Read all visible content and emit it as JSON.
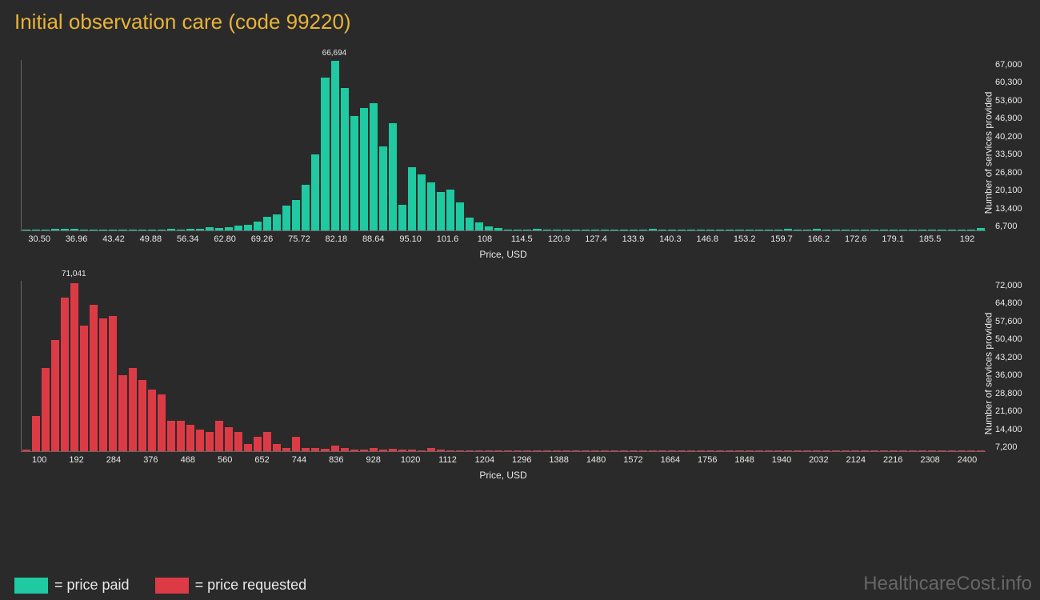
{
  "title": "Initial observation care (code 99220)",
  "watermark": "HealthcareCost.info",
  "xlabel": "Price, USD",
  "ylabel": "Number of services provided",
  "legend": {
    "paid": "= price paid",
    "requested": "= price requested"
  },
  "colors": {
    "background": "#2a2a2a",
    "title": "#e8b33a",
    "teal": "#1fc9a1",
    "red": "#dc3b46",
    "text": "#e8e8e8",
    "axis": "#666666",
    "watermark": "#666666"
  },
  "chart_paid": {
    "bar_color": "#1fc9a1",
    "peak_label": "66,694",
    "peak_index": 32,
    "xlim": [
      30.5,
      192
    ],
    "ymax": 67000,
    "xticks": [
      "30.50",
      "36.96",
      "43.42",
      "49.88",
      "56.34",
      "62.80",
      "69.26",
      "75.72",
      "82.18",
      "88.64",
      "95.10",
      "101.6",
      "108",
      "114.5",
      "120.9",
      "127.4",
      "133.9",
      "140.3",
      "146.8",
      "153.2",
      "159.7",
      "166.2",
      "172.6",
      "179.1",
      "185.5",
      "192"
    ],
    "yticks": [
      "6,700",
      "13,400",
      "20,100",
      "26,800",
      "33,500",
      "40,200",
      "46,900",
      "53,600",
      "60,300",
      "67,000"
    ],
    "values": [
      300,
      200,
      150,
      700,
      600,
      500,
      250,
      400,
      200,
      250,
      300,
      200,
      300,
      200,
      250,
      600,
      300,
      500,
      700,
      1200,
      800,
      1200,
      1800,
      2200,
      3500,
      5500,
      6200,
      9800,
      12000,
      18000,
      30000,
      60000,
      66694,
      56000,
      45000,
      48000,
      50000,
      33000,
      42000,
      10000,
      25000,
      22000,
      19000,
      15000,
      16000,
      11000,
      5000,
      3000,
      1600,
      800,
      400,
      300,
      200,
      700,
      200,
      200,
      200,
      200,
      200,
      200,
      200,
      200,
      200,
      200,
      300,
      600,
      200,
      200,
      200,
      200,
      200,
      200,
      400,
      200,
      200,
      200,
      200,
      300,
      200,
      500,
      400,
      200,
      600,
      200,
      400,
      300,
      200,
      200,
      200,
      200,
      200,
      200,
      200,
      200,
      200,
      200,
      200,
      200,
      200,
      1000
    ]
  },
  "chart_requested": {
    "bar_color": "#dc3b46",
    "peak_label": "71,041",
    "peak_index": 5,
    "xlim": [
      100,
      2400
    ],
    "ymax": 72000,
    "xticks": [
      "100",
      "192",
      "284",
      "376",
      "468",
      "560",
      "652",
      "744",
      "836",
      "928",
      "1020",
      "1112",
      "1204",
      "1296",
      "1388",
      "1480",
      "1572",
      "1664",
      "1756",
      "1848",
      "1940",
      "2032",
      "2124",
      "2216",
      "2308",
      "2400"
    ],
    "yticks": [
      "7,200",
      "14,400",
      "21,600",
      "28,800",
      "36,000",
      "43,200",
      "50,400",
      "57,600",
      "64,800",
      "72,000"
    ],
    "values": [
      600,
      15000,
      35000,
      47000,
      65000,
      71041,
      53000,
      62000,
      56000,
      57000,
      32000,
      35000,
      30000,
      26000,
      24000,
      13000,
      13000,
      11000,
      9000,
      8000,
      13000,
      10000,
      8000,
      3000,
      6000,
      8000,
      3000,
      1500,
      6000,
      1200,
      1200,
      900,
      2500,
      1500,
      700,
      700,
      1500,
      600,
      1000,
      800,
      700,
      500,
      1500,
      600,
      500,
      400,
      300,
      300,
      300,
      300,
      300,
      300,
      300,
      300,
      300,
      300,
      300,
      300,
      300,
      300,
      300,
      300,
      300,
      300,
      300,
      300,
      300,
      300,
      300,
      300,
      300,
      300,
      300,
      300,
      300,
      300,
      300,
      300,
      300,
      300,
      300,
      300,
      300,
      300,
      300,
      300,
      300,
      300,
      300,
      300,
      300,
      300,
      300,
      300,
      300,
      300,
      300,
      300,
      300,
      400
    ]
  }
}
